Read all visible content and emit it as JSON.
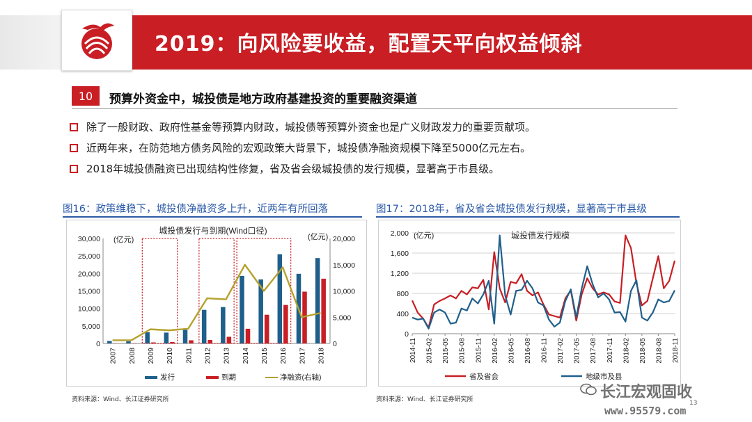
{
  "header": {
    "title": "2019：向风险要收益，配置天平向权益倾斜"
  },
  "section": {
    "number": "10",
    "title": "预算外资金中，城投债是地方政府基建投资的重要融资渠道"
  },
  "bullets": [
    "除了一般财政、政府性基金等预算内财政，城投债等预算外资金也是广义财政发力的重要贡献项。",
    "近两年来，在防范地方债务风险的宏观政策大背景下，城投债净融资规模下降至5000亿元左右。",
    "2018年城投债融资已出现结构性修复，省及省会级城投债的发行规模，显著高于市县级。"
  ],
  "figures": {
    "left_title": "图16：政策维稳下，城投债净融资多上升，近两年有所回落",
    "right_title": "图17：2018年，省及省会城投债发行规模，显著高于市县级",
    "left_source": "资料来源：Wind、长江证券研究所",
    "right_source": "资料来源：Wind、长江证券研究所"
  },
  "page_number": "13",
  "watermark": {
    "brand": "长江宏观固收",
    "url": "www.95579.com"
  },
  "colors": {
    "red": "#c81e24",
    "blue": "#1f5f8b",
    "olive": "#b5a12d",
    "fig_blue": "#2b5aa8"
  },
  "chart_data": [
    {
      "type": "bar",
      "title": "城投债发行与到期(Wind口径)",
      "ylabel_left": "(亿元)",
      "ylabel_right": "(亿元)",
      "ylim": [
        0,
        30000
      ],
      "ylim_right": [
        0,
        20000
      ],
      "yticks_left": [
        "0",
        "5,000",
        "10,000",
        "15,000",
        "20,000",
        "25,000",
        "30,000"
      ],
      "yticks_right": [
        "0",
        "5,000",
        "10,000",
        "15,000",
        "20,000"
      ],
      "categories": [
        "2007",
        "2008",
        "2009",
        "2010",
        "2011",
        "2012",
        "2013",
        "2014",
        "2015",
        "2016",
        "2017",
        "2018"
      ],
      "series": [
        {
          "name": "发行",
          "kind": "bar",
          "color": "#1f5f8b",
          "values": [
            700,
            600,
            3200,
            3100,
            3900,
            9600,
            10400,
            19300,
            18300,
            25500,
            19900,
            24400
          ]
        },
        {
          "name": "到期",
          "kind": "bar",
          "color": "#c81e24",
          "values": [
            50,
            100,
            300,
            400,
            900,
            1000,
            1900,
            4200,
            8200,
            11000,
            14800,
            18500
          ]
        },
        {
          "name": "净融资(右轴)",
          "kind": "line",
          "axis": "right",
          "color": "#b5a12d",
          "values": [
            600,
            600,
            2700,
            2500,
            2800,
            8600,
            8400,
            15000,
            10000,
            14500,
            5000,
            5800
          ]
        }
      ],
      "highlight_ranges": [
        [
          "2009",
          "2010"
        ],
        [
          "2012",
          "2013"
        ],
        [
          "2014",
          "2016"
        ]
      ],
      "legend_position": "bottom"
    },
    {
      "type": "line",
      "title": "城投债发行规模",
      "ylabel": "(亿元)",
      "ylim": [
        0,
        2000
      ],
      "yticks": [
        "0",
        "400",
        "800",
        "1,200",
        "1,600",
        "2,000"
      ],
      "x_ticks": [
        "2014-11",
        "2015-02",
        "2015-05",
        "2015-08",
        "2015-11",
        "2016-02",
        "2016-05",
        "2016-08",
        "2016-11",
        "2017-02",
        "2017-05",
        "2017-08",
        "2017-11",
        "2018-02",
        "2018-05",
        "2018-08",
        "2018-11"
      ],
      "x": [
        "2014-11",
        "2014-12",
        "2015-01",
        "2015-02",
        "2015-03",
        "2015-04",
        "2015-05",
        "2015-06",
        "2015-07",
        "2015-08",
        "2015-09",
        "2015-10",
        "2015-11",
        "2015-12",
        "2016-01",
        "2016-02",
        "2016-03",
        "2016-04",
        "2016-05",
        "2016-06",
        "2016-07",
        "2016-08",
        "2016-09",
        "2016-10",
        "2016-11",
        "2016-12",
        "2017-01",
        "2017-02",
        "2017-03",
        "2017-04",
        "2017-05",
        "2017-06",
        "2017-07",
        "2017-08",
        "2017-09",
        "2017-10",
        "2017-11",
        "2017-12",
        "2018-01",
        "2018-02",
        "2018-03",
        "2018-04",
        "2018-05",
        "2018-06",
        "2018-07",
        "2018-08",
        "2018-09",
        "2018-10",
        "2018-11"
      ],
      "series": [
        {
          "name": "省及省会",
          "color": "#c81e24",
          "values": [
            660,
            420,
            300,
            120,
            580,
            650,
            700,
            760,
            700,
            850,
            780,
            920,
            900,
            1070,
            480,
            1620,
            900,
            620,
            1030,
            1000,
            1180,
            850,
            760,
            820,
            580,
            380,
            350,
            320,
            700,
            860,
            260,
            780,
            1100,
            900,
            780,
            820,
            780,
            640,
            610,
            1950,
            1700,
            1000,
            560,
            650,
            1100,
            1540,
            900,
            1050,
            1450
          ]
        },
        {
          "name": "地级市及县",
          "color": "#1f5f8b",
          "values": [
            320,
            280,
            300,
            100,
            420,
            480,
            420,
            200,
            220,
            500,
            460,
            700,
            600,
            780,
            1050,
            200,
            1950,
            760,
            380,
            850,
            870,
            1050,
            900,
            620,
            560,
            280,
            140,
            220,
            650,
            880,
            320,
            900,
            1340,
            980,
            720,
            800,
            680,
            420,
            430,
            240,
            850,
            1060,
            320,
            260,
            420,
            680,
            620,
            650,
            860
          ]
        }
      ],
      "legend_position": "bottom"
    }
  ]
}
